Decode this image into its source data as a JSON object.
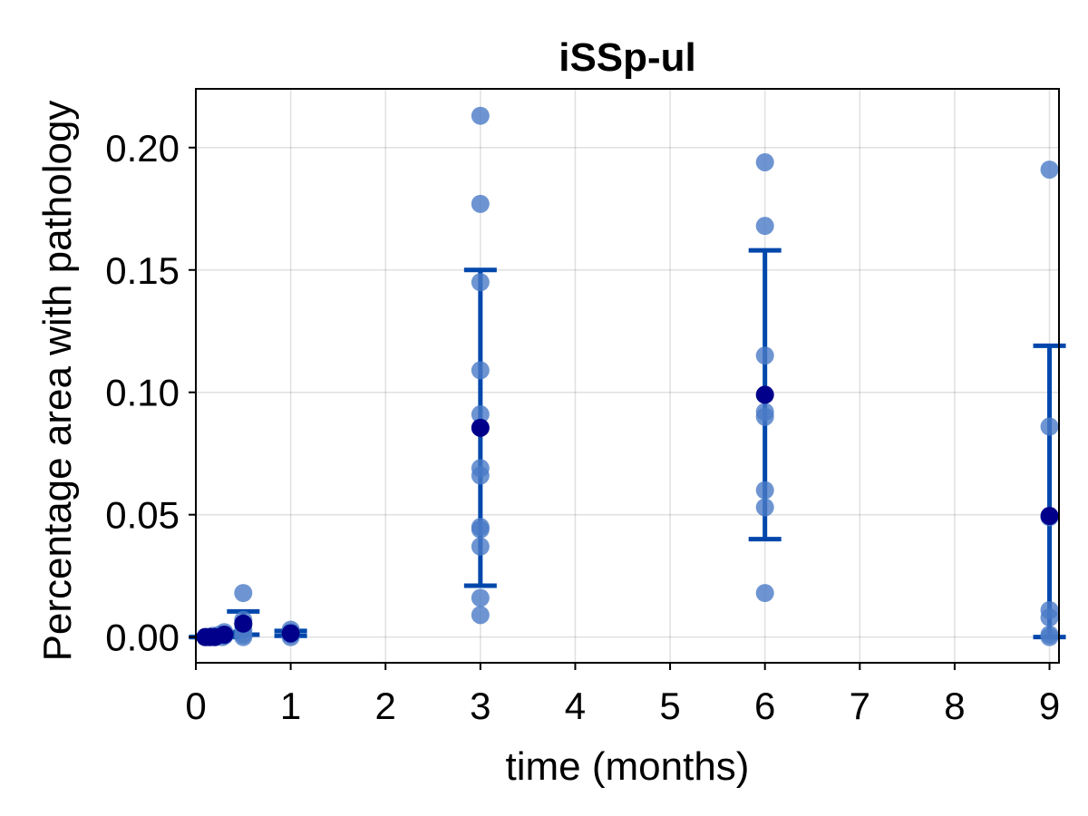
{
  "chart_data": {
    "type": "scatter",
    "title": "iSSp-ul",
    "xlabel": "time (months)",
    "ylabel": "Percentage area with pathology",
    "xlim": [
      0,
      9.1
    ],
    "ylim": [
      -0.0105,
      0.224
    ],
    "x_ticks": [
      0,
      1,
      2,
      3,
      4,
      5,
      6,
      7,
      8,
      9
    ],
    "x_tick_labels": [
      "0",
      "1",
      "2",
      "3",
      "4",
      "5",
      "6",
      "7",
      "8",
      "9"
    ],
    "y_ticks": [
      0.0,
      0.05,
      0.1,
      0.15,
      0.2
    ],
    "y_tick_labels": [
      "0.00",
      "0.05",
      "0.10",
      "0.15",
      "0.20"
    ],
    "grid": true,
    "colors": {
      "points": "#4a7ac7",
      "mean": "#00008b",
      "errorbar": "#0047ab"
    },
    "points": [
      {
        "x": 0.1,
        "y": 0.0
      },
      {
        "x": 0.12,
        "y": 0.0
      },
      {
        "x": 0.15,
        "y": 0.0
      },
      {
        "x": 0.18,
        "y": 0.0005
      },
      {
        "x": 0.2,
        "y": 0.0
      },
      {
        "x": 0.25,
        "y": 0.001
      },
      {
        "x": 0.28,
        "y": 0.0
      },
      {
        "x": 0.3,
        "y": 0.002
      },
      {
        "x": 0.3,
        "y": 0.0005
      },
      {
        "x": 0.5,
        "y": 0.018
      },
      {
        "x": 0.5,
        "y": 0.007
      },
      {
        "x": 0.5,
        "y": 0.005
      },
      {
        "x": 0.5,
        "y": 0.003
      },
      {
        "x": 0.5,
        "y": 0.001
      },
      {
        "x": 0.5,
        "y": 0.0
      },
      {
        "x": 1,
        "y": 0.003
      },
      {
        "x": 1,
        "y": 0.002
      },
      {
        "x": 1,
        "y": 0.001
      },
      {
        "x": 1,
        "y": 0.0
      },
      {
        "x": 3,
        "y": 0.213
      },
      {
        "x": 3,
        "y": 0.177
      },
      {
        "x": 3,
        "y": 0.145
      },
      {
        "x": 3,
        "y": 0.109
      },
      {
        "x": 3,
        "y": 0.091
      },
      {
        "x": 3,
        "y": 0.069
      },
      {
        "x": 3,
        "y": 0.066
      },
      {
        "x": 3,
        "y": 0.045
      },
      {
        "x": 3,
        "y": 0.044
      },
      {
        "x": 3,
        "y": 0.037
      },
      {
        "x": 3,
        "y": 0.016
      },
      {
        "x": 3,
        "y": 0.009
      },
      {
        "x": 6,
        "y": 0.194
      },
      {
        "x": 6,
        "y": 0.168
      },
      {
        "x": 6,
        "y": 0.115
      },
      {
        "x": 6,
        "y": 0.092
      },
      {
        "x": 6,
        "y": 0.09
      },
      {
        "x": 6,
        "y": 0.06
      },
      {
        "x": 6,
        "y": 0.053
      },
      {
        "x": 6,
        "y": 0.018
      },
      {
        "x": 9,
        "y": 0.191
      },
      {
        "x": 9,
        "y": 0.086
      },
      {
        "x": 9,
        "y": 0.049
      },
      {
        "x": 9,
        "y": 0.011
      },
      {
        "x": 9,
        "y": 0.008
      },
      {
        "x": 9,
        "y": 0.001
      },
      {
        "x": 9,
        "y": 0.0
      }
    ],
    "means": [
      {
        "x": 0.1,
        "y": 0.0,
        "lower": 0.0,
        "upper": 0.0
      },
      {
        "x": 0.15,
        "y": 0.0,
        "lower": 0.0,
        "upper": 0.0
      },
      {
        "x": 0.2,
        "y": 0.0,
        "lower": 0.0,
        "upper": 0.0
      },
      {
        "x": 0.3,
        "y": 0.001,
        "lower": 0.0,
        "upper": 0.002
      },
      {
        "x": 0.5,
        "y": 0.0055,
        "lower": 0.001,
        "upper": 0.0105
      },
      {
        "x": 1,
        "y": 0.0015,
        "lower": 0.0005,
        "upper": 0.0025
      },
      {
        "x": 3,
        "y": 0.0855,
        "lower": 0.021,
        "upper": 0.15
      },
      {
        "x": 6,
        "y": 0.099,
        "lower": 0.04,
        "upper": 0.158
      },
      {
        "x": 9,
        "y": 0.0495,
        "lower": 0.0,
        "upper": 0.119
      }
    ]
  }
}
